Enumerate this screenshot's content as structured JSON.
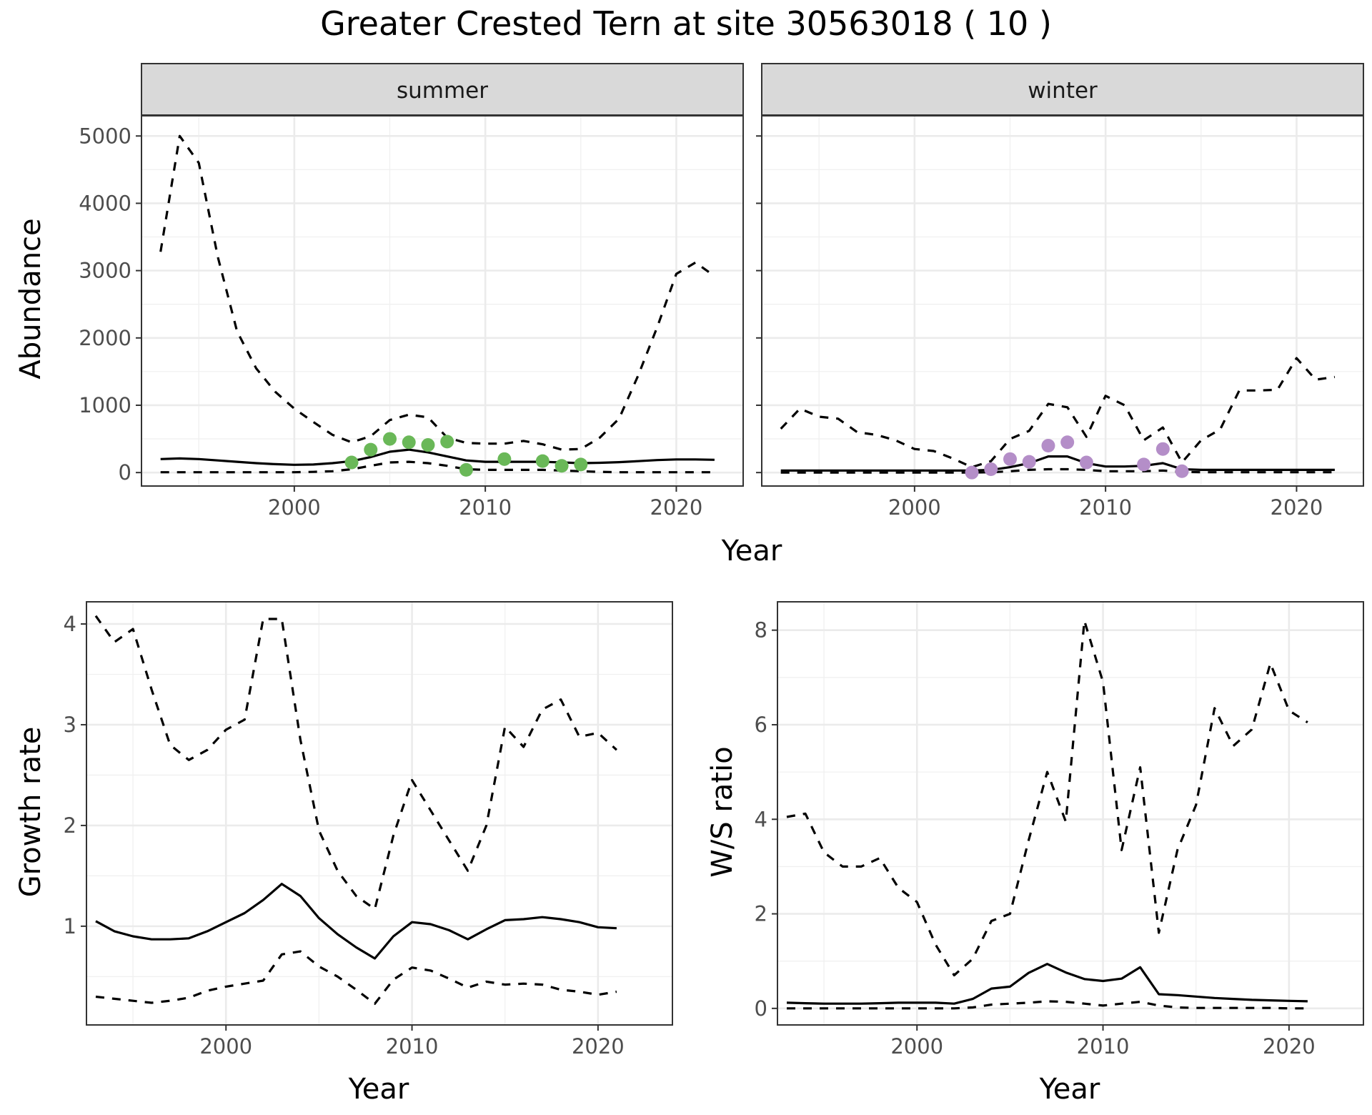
{
  "title": "Greater Crested Tern at site 30563018 ( 10 )",
  "chart_data": [
    {
      "type": "line",
      "facet": "summer",
      "xlabel": "Year",
      "ylabel": "Abundance",
      "xlim": [
        1992,
        2023.5
      ],
      "ylim": [
        -200,
        5300
      ],
      "xticks": [
        2000,
        2010,
        2020
      ],
      "yticks": [
        0,
        1000,
        2000,
        3000,
        4000,
        5000
      ],
      "colors": {
        "points": "#6ab858"
      },
      "series": [
        {
          "role": "estimate",
          "style": "solid",
          "x": [
            1993,
            1994,
            1995,
            1996,
            1997,
            1998,
            1999,
            2000,
            2001,
            2002,
            2003,
            2004,
            2005,
            2006,
            2007,
            2008,
            2009,
            2010,
            2011,
            2012,
            2013,
            2014,
            2015,
            2016,
            2017,
            2018,
            2019,
            2020,
            2021,
            2022
          ],
          "y": [
            200,
            210,
            200,
            180,
            160,
            140,
            125,
            115,
            120,
            140,
            170,
            230,
            310,
            340,
            300,
            240,
            180,
            160,
            160,
            160,
            160,
            150,
            140,
            145,
            155,
            170,
            185,
            195,
            195,
            190
          ]
        },
        {
          "role": "upper",
          "style": "dashed",
          "x": [
            1993,
            1994,
            1995,
            1996,
            1997,
            1998,
            1999,
            2000,
            2001,
            2002,
            2003,
            2004,
            2005,
            2006,
            2007,
            2008,
            2009,
            2010,
            2011,
            2012,
            2013,
            2014,
            2015,
            2016,
            2017,
            2018,
            2019,
            2020,
            2021,
            2022
          ],
          "y": [
            3280,
            5000,
            4600,
            3200,
            2100,
            1550,
            1200,
            950,
            750,
            560,
            450,
            540,
            780,
            860,
            820,
            520,
            440,
            430,
            430,
            470,
            420,
            340,
            350,
            520,
            800,
            1440,
            2160,
            2950,
            3120,
            2920
          ]
        },
        {
          "role": "lower",
          "style": "dashed",
          "x": [
            1993,
            1994,
            1995,
            1996,
            1997,
            1998,
            1999,
            2000,
            2001,
            2002,
            2003,
            2004,
            2005,
            2006,
            2007,
            2008,
            2009,
            2010,
            2011,
            2012,
            2013,
            2014,
            2015,
            2016,
            2017,
            2018,
            2019,
            2020,
            2021,
            2022
          ],
          "y": [
            5,
            5,
            5,
            5,
            5,
            5,
            5,
            5,
            10,
            20,
            50,
            100,
            150,
            160,
            140,
            100,
            50,
            40,
            40,
            40,
            40,
            30,
            20,
            10,
            5,
            5,
            5,
            5,
            5,
            5
          ]
        },
        {
          "role": "observed",
          "style": "points",
          "x": [
            2003,
            2004,
            2005,
            2006,
            2007,
            2008,
            2009,
            2011,
            2013,
            2014,
            2015
          ],
          "y": [
            150,
            340,
            500,
            450,
            410,
            460,
            40,
            200,
            170,
            100,
            120
          ]
        }
      ]
    },
    {
      "type": "line",
      "facet": "winter",
      "xlabel": "Year",
      "ylabel": "Abundance",
      "xlim": [
        1992,
        2023.5
      ],
      "ylim": [
        -200,
        5300
      ],
      "xticks": [
        2000,
        2010,
        2020
      ],
      "yticks": [
        0,
        1000,
        2000,
        3000,
        4000,
        5000
      ],
      "colors": {
        "points": "#b48ec8"
      },
      "series": [
        {
          "role": "estimate",
          "style": "solid",
          "x": [
            1993,
            1994,
            1995,
            1996,
            1997,
            1998,
            1999,
            2000,
            2001,
            2002,
            2003,
            2004,
            2005,
            2006,
            2007,
            2008,
            2009,
            2010,
            2011,
            2012,
            2013,
            2014,
            2015,
            2016,
            2017,
            2018,
            2019,
            2020,
            2021,
            2022
          ],
          "y": [
            30,
            30,
            30,
            30,
            30,
            30,
            30,
            30,
            30,
            30,
            30,
            40,
            80,
            140,
            240,
            240,
            140,
            90,
            90,
            100,
            140,
            50,
            40,
            40,
            40,
            40,
            40,
            40,
            40,
            40
          ]
        },
        {
          "role": "upper",
          "style": "dashed",
          "x": [
            1993,
            1994,
            1995,
            1996,
            1997,
            1998,
            1999,
            2000,
            2001,
            2002,
            2003,
            2004,
            2005,
            2006,
            2007,
            2008,
            2009,
            2010,
            2011,
            2012,
            2013,
            2014,
            2015,
            2016,
            2017,
            2018,
            2019,
            2020,
            2021,
            2022
          ],
          "y": [
            650,
            950,
            830,
            800,
            600,
            560,
            480,
            350,
            320,
            210,
            80,
            170,
            500,
            620,
            1020,
            970,
            530,
            1140,
            1000,
            480,
            670,
            150,
            480,
            640,
            1220,
            1220,
            1230,
            1700,
            1380,
            1420
          ]
        },
        {
          "role": "lower",
          "style": "dashed",
          "x": [
            1993,
            1994,
            1995,
            1996,
            1997,
            1998,
            1999,
            2000,
            2001,
            2002,
            2003,
            2004,
            2005,
            2006,
            2007,
            2008,
            2009,
            2010,
            2011,
            2012,
            2013,
            2014,
            2015,
            2016,
            2017,
            2018,
            2019,
            2020,
            2021,
            2022
          ],
          "y": [
            0,
            0,
            0,
            0,
            0,
            0,
            0,
            0,
            0,
            0,
            0,
            5,
            20,
            40,
            50,
            50,
            40,
            20,
            20,
            20,
            30,
            10,
            5,
            5,
            5,
            5,
            5,
            5,
            5,
            5
          ]
        },
        {
          "role": "observed",
          "style": "points",
          "x": [
            2003,
            2004,
            2005,
            2006,
            2007,
            2008,
            2009,
            2012,
            2013,
            2014
          ],
          "y": [
            0,
            50,
            200,
            160,
            400,
            450,
            150,
            120,
            350,
            20
          ]
        }
      ]
    },
    {
      "type": "line",
      "xlabel": "Year",
      "ylabel": "Growth rate",
      "xlim": [
        1992.5,
        2024
      ],
      "ylim": [
        0.02,
        4.22
      ],
      "xticks": [
        2000,
        2010,
        2020
      ],
      "yticks": [
        1,
        2,
        3,
        4
      ],
      "series": [
        {
          "role": "estimate",
          "style": "solid",
          "x": [
            1993,
            1994,
            1995,
            1996,
            1997,
            1998,
            1999,
            2000,
            2001,
            2002,
            2003,
            2004,
            2005,
            2006,
            2007,
            2008,
            2009,
            2010,
            2011,
            2012,
            2013,
            2014,
            2015,
            2016,
            2017,
            2018,
            2019,
            2020,
            2021
          ],
          "y": [
            1.05,
            0.95,
            0.9,
            0.87,
            0.87,
            0.88,
            0.95,
            1.04,
            1.13,
            1.26,
            1.42,
            1.3,
            1.08,
            0.92,
            0.79,
            0.68,
            0.9,
            1.04,
            1.02,
            0.96,
            0.87,
            0.97,
            1.06,
            1.07,
            1.09,
            1.07,
            1.04,
            0.99,
            0.98
          ]
        },
        {
          "role": "upper",
          "style": "dashed",
          "x": [
            1993,
            1994,
            1995,
            1996,
            1997,
            1998,
            1999,
            2000,
            2001,
            2002,
            2003,
            2004,
            2005,
            2006,
            2007,
            2008,
            2009,
            2010,
            2011,
            2012,
            2013,
            2014,
            2015,
            2016,
            2017,
            2018,
            2019,
            2020,
            2021
          ],
          "y": [
            4.08,
            3.82,
            3.95,
            3.35,
            2.8,
            2.65,
            2.75,
            2.95,
            3.05,
            4.05,
            4.05,
            2.85,
            1.95,
            1.55,
            1.3,
            1.17,
            1.9,
            2.45,
            2.15,
            1.85,
            1.55,
            2.0,
            2.98,
            2.78,
            3.15,
            3.25,
            2.88,
            2.92,
            2.75
          ]
        },
        {
          "role": "lower",
          "style": "dashed",
          "x": [
            1993,
            1994,
            1995,
            1996,
            1997,
            1998,
            1999,
            2000,
            2001,
            2002,
            2003,
            2004,
            2005,
            2006,
            2007,
            2008,
            2009,
            2010,
            2011,
            2012,
            2013,
            2014,
            2015,
            2016,
            2017,
            2018,
            2019,
            2020,
            2021
          ],
          "y": [
            0.3,
            0.28,
            0.26,
            0.24,
            0.26,
            0.29,
            0.36,
            0.4,
            0.43,
            0.46,
            0.72,
            0.75,
            0.6,
            0.5,
            0.37,
            0.23,
            0.47,
            0.59,
            0.56,
            0.48,
            0.39,
            0.45,
            0.42,
            0.43,
            0.42,
            0.37,
            0.35,
            0.32,
            0.35
          ]
        }
      ]
    },
    {
      "type": "line",
      "xlabel": "Year",
      "ylabel": "W/S ratio",
      "xlim": [
        1992.5,
        2024
      ],
      "ylim": [
        -0.35,
        8.6
      ],
      "xticks": [
        2000,
        2010,
        2020
      ],
      "yticks": [
        0,
        2,
        4,
        6,
        8
      ],
      "series": [
        {
          "role": "estimate",
          "style": "solid",
          "x": [
            1993,
            1994,
            1995,
            1996,
            1997,
            1998,
            1999,
            2000,
            2001,
            2002,
            2003,
            2004,
            2005,
            2006,
            2007,
            2008,
            2009,
            2010,
            2011,
            2012,
            2013,
            2014,
            2015,
            2016,
            2017,
            2018,
            2019,
            2020,
            2021
          ],
          "y": [
            0.12,
            0.11,
            0.1,
            0.1,
            0.1,
            0.11,
            0.12,
            0.12,
            0.12,
            0.1,
            0.2,
            0.42,
            0.46,
            0.75,
            0.94,
            0.76,
            0.62,
            0.58,
            0.63,
            0.87,
            0.3,
            0.28,
            0.25,
            0.22,
            0.2,
            0.18,
            0.17,
            0.16,
            0.15
          ]
        },
        {
          "role": "upper",
          "style": "dashed",
          "x": [
            1993,
            1994,
            1995,
            1996,
            1997,
            1998,
            1999,
            2000,
            2001,
            2002,
            2003,
            2004,
            2005,
            2006,
            2007,
            2008,
            2009,
            2010,
            2011,
            2012,
            2013,
            2014,
            2015,
            2016,
            2017,
            2018,
            2019,
            2020,
            2021
          ],
          "y": [
            4.05,
            4.12,
            3.3,
            3.0,
            3.0,
            3.18,
            2.55,
            2.25,
            1.35,
            0.7,
            1.05,
            1.85,
            2.0,
            3.55,
            5.0,
            3.95,
            8.2,
            6.9,
            3.35,
            5.1,
            1.6,
            3.35,
            4.3,
            6.35,
            5.55,
            5.9,
            7.3,
            6.3,
            6.05
          ]
        },
        {
          "role": "lower",
          "style": "dashed",
          "x": [
            1993,
            1994,
            1995,
            1996,
            1997,
            1998,
            1999,
            2000,
            2001,
            2002,
            2003,
            2004,
            2005,
            2006,
            2007,
            2008,
            2009,
            2010,
            2011,
            2012,
            2013,
            2014,
            2015,
            2016,
            2017,
            2018,
            2019,
            2020,
            2021
          ],
          "y": [
            0.0,
            0.0,
            0.0,
            0.0,
            0.0,
            0.0,
            0.0,
            0.0,
            0.0,
            0.0,
            0.02,
            0.08,
            0.1,
            0.12,
            0.15,
            0.14,
            0.1,
            0.06,
            0.1,
            0.14,
            0.06,
            0.02,
            0.01,
            0.01,
            0.01,
            0.01,
            0.01,
            0.0,
            0.0
          ]
        }
      ]
    }
  ]
}
